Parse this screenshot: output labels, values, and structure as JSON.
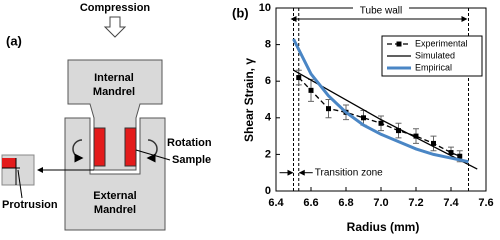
{
  "diagram": {
    "panel_label": "(a)",
    "compression": "Compression",
    "internal": [
      "Internal",
      "Mandrel"
    ],
    "external": [
      "External",
      "Mandrel"
    ],
    "rotation": "Rotation",
    "sample": "Sample",
    "protrusion": "Protrusion"
  },
  "chart_data": {
    "type": "line",
    "panel_label": "(b)",
    "x_label": "Radius (mm)",
    "y_label": "Shear Strain, γ",
    "xlim": [
      6.4,
      7.6
    ],
    "xticks": [
      6.4,
      6.6,
      6.8,
      {
        "value": 7,
        "label": "7.0"
      },
      7.2,
      7.4,
      7.6
    ],
    "ylim": [
      0,
      10
    ],
    "yticks": [
      0,
      2,
      4,
      6,
      8,
      10
    ],
    "annotations": [
      {
        "text": "Tube wall",
        "x": [
          6.5,
          7.5
        ]
      },
      {
        "text": "Transition zone",
        "x": [
          6.5,
          6.53
        ]
      }
    ],
    "series": [
      {
        "name": "Experimental",
        "color": "#000000",
        "dashed": true,
        "marker": true,
        "x": [
          6.53,
          6.6,
          6.7,
          6.8,
          6.9,
          7.0,
          7.1,
          7.2,
          7.3,
          7.4,
          7.45
        ],
        "values": [
          6.2,
          5.5,
          4.5,
          4.3,
          4.0,
          3.7,
          3.3,
          3.0,
          2.6,
          2.1,
          1.9
        ],
        "errors": [
          0.4,
          0.6,
          0.5,
          0.4,
          0.4,
          0.4,
          0.4,
          0.4,
          0.4,
          0.3,
          0.3
        ]
      },
      {
        "name": "Simulated",
        "color": "#000000",
        "x": [
          6.5,
          7.0,
          7.55
        ],
        "values": [
          6.6,
          3.9,
          1.2
        ]
      },
      {
        "name": "Empirical",
        "color": "#4a86c5",
        "width": 3,
        "x": [
          6.5,
          6.6,
          6.7,
          6.8,
          6.9,
          7.0,
          7.1,
          7.2,
          7.3,
          7.4,
          7.5
        ],
        "values": [
          8.3,
          6.4,
          5.2,
          4.3,
          3.6,
          3.1,
          2.7,
          2.3,
          2.0,
          1.8,
          1.6
        ]
      }
    ]
  }
}
